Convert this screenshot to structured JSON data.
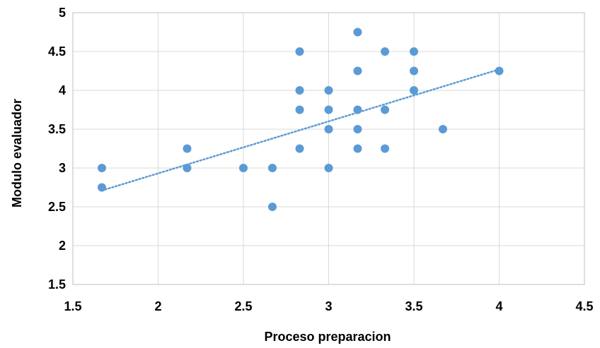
{
  "chart_data": {
    "type": "scatter",
    "title": "",
    "xlabel": "Proceso preparacion",
    "ylabel": "Modulo evaluador",
    "xlim": [
      1.5,
      4.5
    ],
    "ylim": [
      1.5,
      5
    ],
    "x_ticks": [
      1.5,
      2,
      2.5,
      3,
      3.5,
      4,
      4.5
    ],
    "y_ticks": [
      1.5,
      2,
      2.5,
      3,
      3.5,
      4,
      4.5,
      5
    ],
    "x_tick_labels": [
      "1.5",
      "2",
      "2.5",
      "3",
      "3.5",
      "4",
      "4.5"
    ],
    "y_tick_labels": [
      "1.5",
      "2",
      "2.5",
      "3",
      "3.5",
      "4",
      "4.5",
      "5"
    ],
    "grid": true,
    "legend": "none",
    "point_color": "#5B9BD5",
    "trendline_color": "#5B9BD5",
    "points": [
      {
        "x": 1.67,
        "y": 3.0
      },
      {
        "x": 1.67,
        "y": 2.75
      },
      {
        "x": 2.17,
        "y": 3.25
      },
      {
        "x": 2.17,
        "y": 3.0
      },
      {
        "x": 2.5,
        "y": 3.0
      },
      {
        "x": 2.67,
        "y": 3.0
      },
      {
        "x": 2.67,
        "y": 2.5
      },
      {
        "x": 2.83,
        "y": 4.5
      },
      {
        "x": 2.83,
        "y": 4.0
      },
      {
        "x": 2.83,
        "y": 3.75
      },
      {
        "x": 2.83,
        "y": 3.25
      },
      {
        "x": 3.0,
        "y": 4.0
      },
      {
        "x": 3.0,
        "y": 3.75
      },
      {
        "x": 3.0,
        "y": 3.5
      },
      {
        "x": 3.0,
        "y": 3.0
      },
      {
        "x": 3.17,
        "y": 4.75
      },
      {
        "x": 3.17,
        "y": 4.25
      },
      {
        "x": 3.17,
        "y": 3.75
      },
      {
        "x": 3.17,
        "y": 3.5
      },
      {
        "x": 3.17,
        "y": 3.25
      },
      {
        "x": 3.33,
        "y": 4.5
      },
      {
        "x": 3.33,
        "y": 3.75
      },
      {
        "x": 3.33,
        "y": 3.25
      },
      {
        "x": 3.5,
        "y": 4.5
      },
      {
        "x": 3.5,
        "y": 4.25
      },
      {
        "x": 3.5,
        "y": 4.0
      },
      {
        "x": 3.67,
        "y": 3.5
      },
      {
        "x": 4.0,
        "y": 4.25
      }
    ],
    "trendline": {
      "type": "linear",
      "from": {
        "x": 1.67,
        "y": 2.71
      },
      "to": {
        "x": 4.0,
        "y": 4.27
      }
    }
  }
}
